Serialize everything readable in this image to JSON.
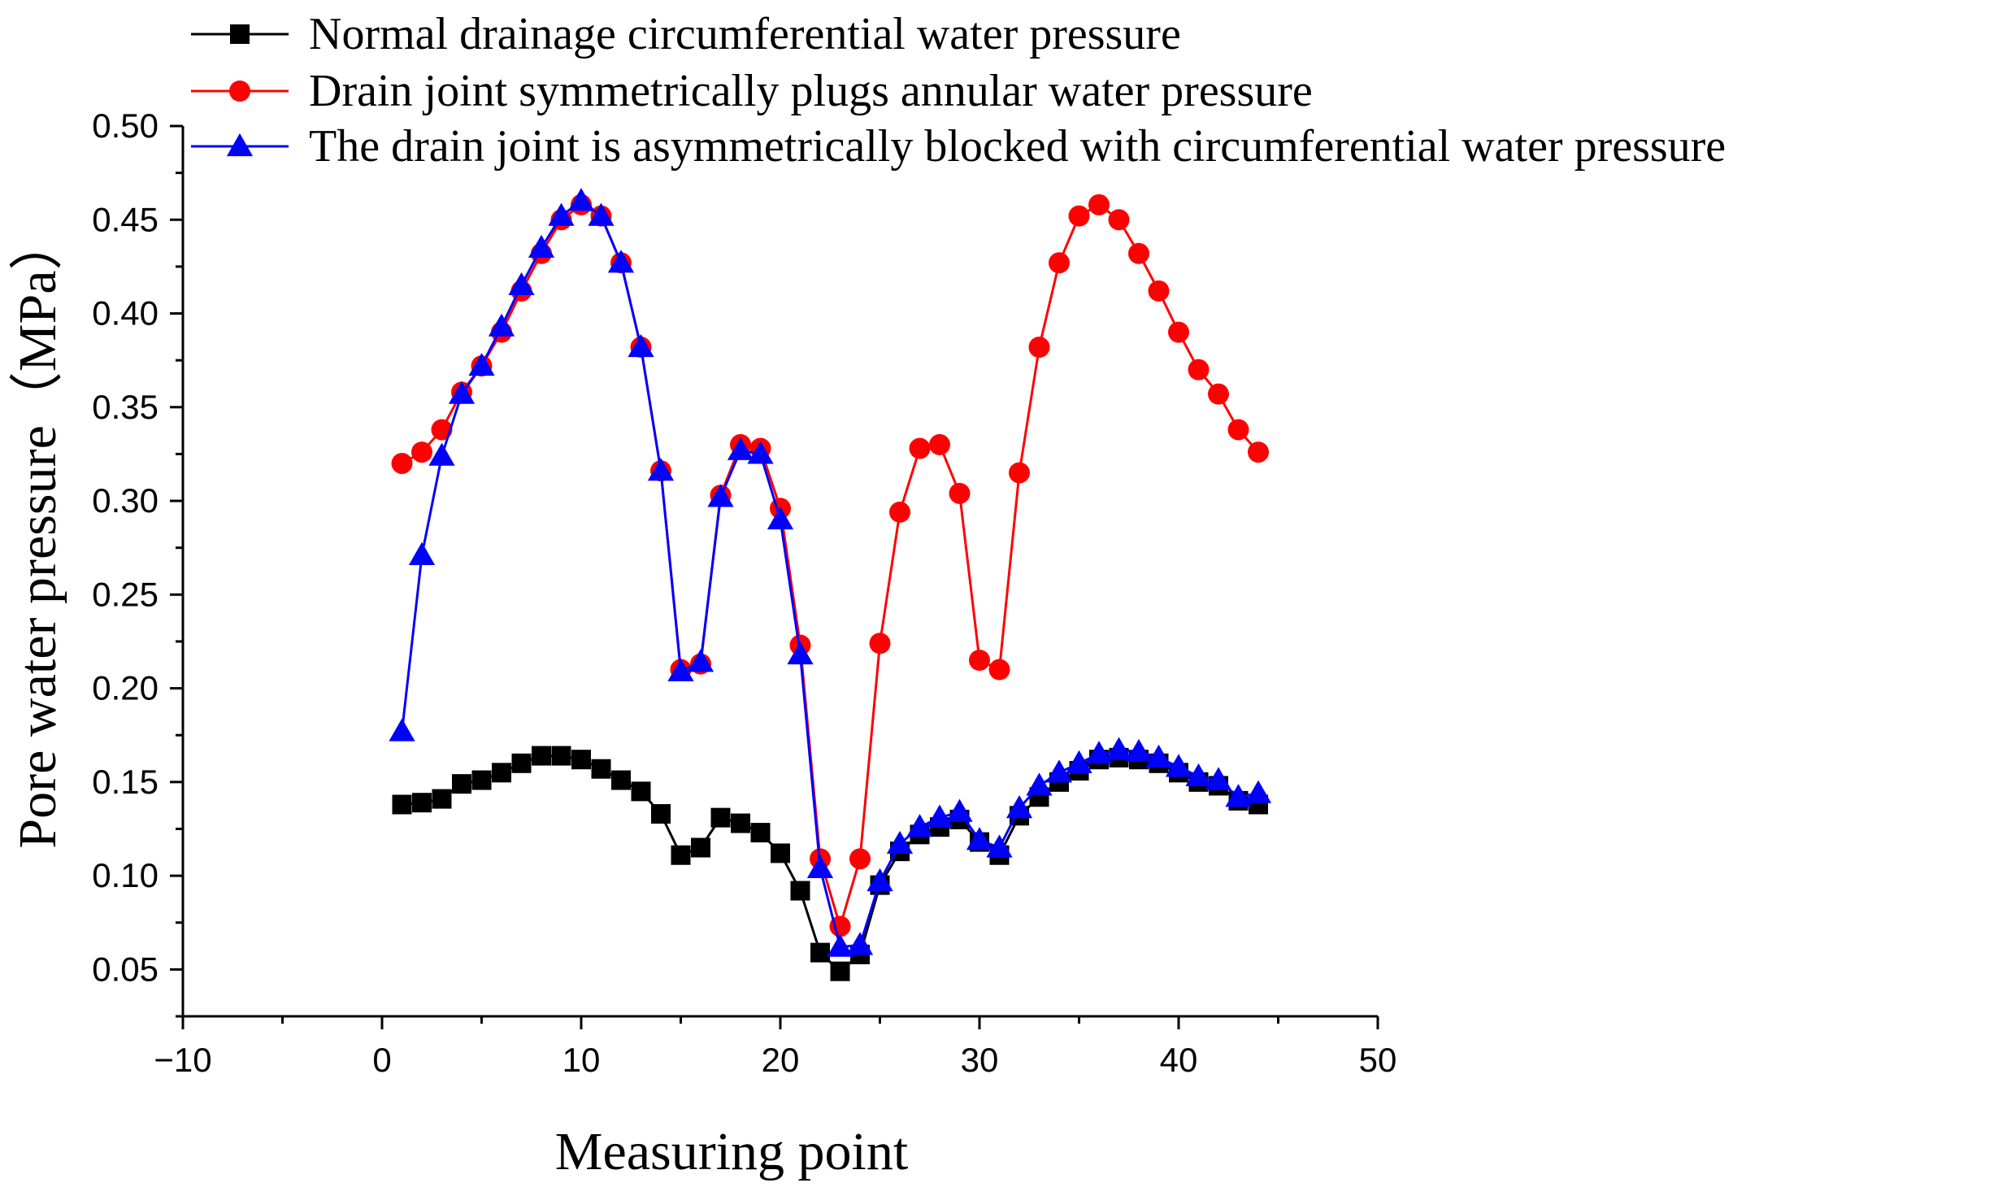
{
  "chart_data": {
    "type": "line",
    "title": "",
    "xlabel": "Measuring point",
    "ylabel": "Pore water pressure（MPa）",
    "xlim": [
      -10,
      50
    ],
    "ylim": [
      0.025,
      0.5
    ],
    "x_ticks": [
      -10,
      0,
      10,
      20,
      30,
      40,
      50
    ],
    "x_tick_labels": [
      "−10",
      "0",
      "10",
      "20",
      "30",
      "40",
      "50"
    ],
    "y_ticks": [
      0.05,
      0.1,
      0.15,
      0.2,
      0.25,
      0.3,
      0.35,
      0.4,
      0.45,
      0.5
    ],
    "y_tick_labels": [
      "0.05",
      "0.10",
      "0.15",
      "0.20",
      "0.25",
      "0.30",
      "0.35",
      "0.40",
      "0.45",
      "0.50"
    ],
    "legend_position": "top-left, outside above plot",
    "x": [
      1,
      2,
      3,
      4,
      5,
      6,
      7,
      8,
      9,
      10,
      11,
      12,
      13,
      14,
      15,
      16,
      17,
      18,
      19,
      20,
      21,
      22,
      23,
      24,
      25,
      26,
      27,
      28,
      29,
      30,
      31,
      32,
      33,
      34,
      35,
      36,
      37,
      38,
      39,
      40,
      41,
      42,
      43,
      44
    ],
    "series": [
      {
        "name": "Normal drainage circumferential water pressure",
        "color": "#000000",
        "marker": "square",
        "values": [
          0.138,
          0.139,
          0.141,
          0.149,
          0.151,
          0.155,
          0.16,
          0.164,
          0.164,
          0.162,
          0.157,
          0.151,
          0.145,
          0.133,
          0.111,
          0.115,
          0.131,
          0.128,
          0.123,
          0.112,
          0.092,
          0.059,
          0.049,
          0.058,
          0.095,
          0.113,
          0.122,
          0.126,
          0.13,
          0.118,
          0.111,
          0.132,
          0.142,
          0.15,
          0.156,
          0.162,
          0.163,
          0.162,
          0.16,
          0.155,
          0.15,
          0.148,
          0.14,
          0.138
        ]
      },
      {
        "name": "Drain joint symmetrically plugs annular water pressure",
        "color": "#ff0000",
        "marker": "circle",
        "values": [
          0.32,
          0.326,
          0.338,
          0.358,
          0.372,
          0.39,
          0.412,
          0.432,
          0.45,
          0.458,
          0.452,
          0.427,
          0.382,
          0.316,
          0.21,
          0.213,
          0.303,
          0.33,
          0.328,
          0.296,
          0.223,
          0.109,
          0.073,
          0.109,
          0.224,
          0.294,
          0.328,
          0.33,
          0.304,
          0.215,
          0.21,
          0.315,
          0.382,
          0.427,
          0.452,
          0.458,
          0.45,
          0.432,
          0.412,
          0.39,
          0.37,
          0.357,
          0.338,
          0.326
        ]
      },
      {
        "name": "The drain joint is asymmetrically blocked with circumferential water pressure",
        "color": "#0000ff",
        "marker": "triangle",
        "values": [
          0.177,
          0.271,
          0.324,
          0.357,
          0.372,
          0.393,
          0.415,
          0.435,
          0.452,
          0.46,
          0.452,
          0.427,
          0.382,
          0.316,
          0.209,
          0.214,
          0.302,
          0.327,
          0.325,
          0.29,
          0.218,
          0.104,
          0.062,
          0.063,
          0.097,
          0.117,
          0.126,
          0.131,
          0.134,
          0.119,
          0.115,
          0.136,
          0.148,
          0.155,
          0.16,
          0.165,
          0.167,
          0.166,
          0.163,
          0.158,
          0.153,
          0.151,
          0.142,
          0.144
        ]
      }
    ]
  }
}
